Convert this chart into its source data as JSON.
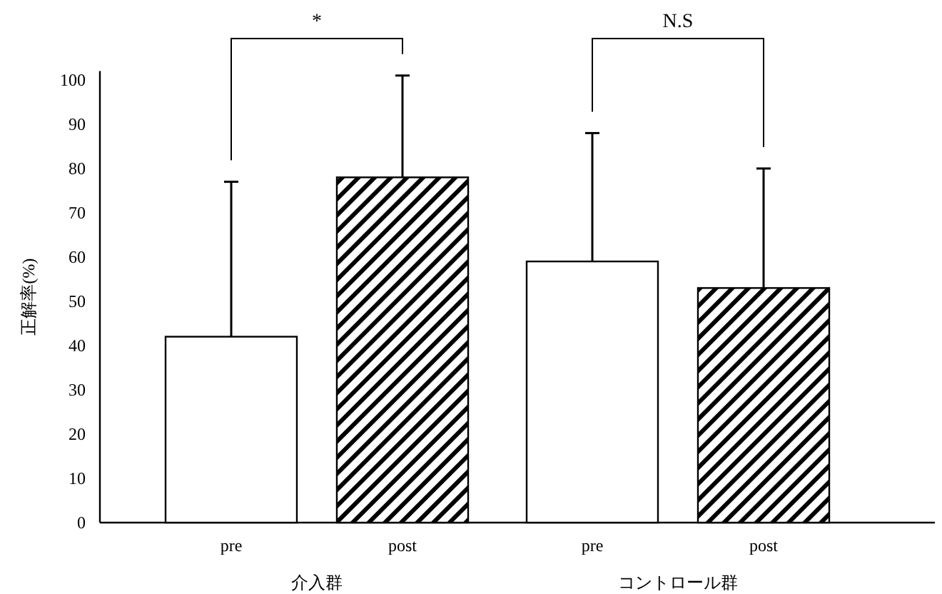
{
  "chart_data": {
    "type": "bar",
    "ylabel": "正解率(%)",
    "categories": [
      "介入群",
      "コントロール群"
    ],
    "series": [
      {
        "name": "pre",
        "color": "#ffffff",
        "values": [
          42,
          59
        ],
        "errors": [
          [
            42,
            77
          ],
          [
            59,
            88
          ]
        ]
      },
      {
        "name": "post",
        "color": "#000000",
        "values": [
          78,
          53
        ],
        "errors": [
          [
            78,
            101
          ],
          [
            53,
            80
          ]
        ]
      }
    ],
    "ylim": [
      0,
      102
    ],
    "yticks": [
      0,
      10,
      20,
      30,
      40,
      50,
      60,
      70,
      80,
      90,
      100
    ],
    "annotations": [
      "*",
      "N.S"
    ]
  }
}
